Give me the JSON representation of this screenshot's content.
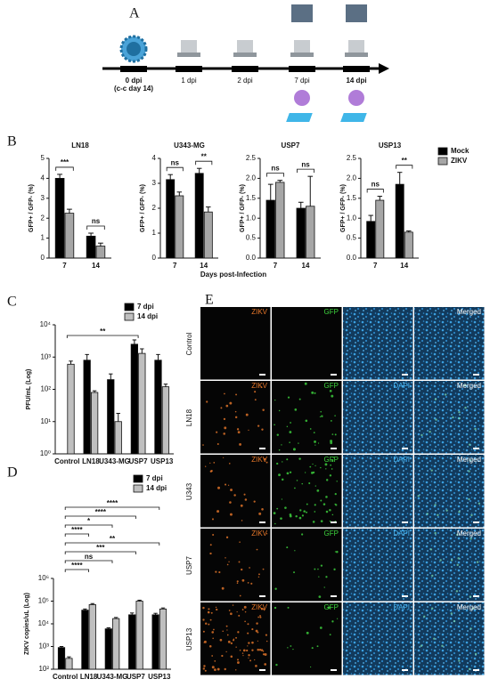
{
  "panels": [
    "A",
    "B",
    "C",
    "D",
    "E"
  ],
  "timeline": {
    "labels": [
      "0 dpi",
      "(c-c day 14)",
      "1 dpi",
      "2 dpi",
      "7 dpi",
      "14 dpi"
    ]
  },
  "chart_data": [
    {
      "type": "bar",
      "title": "LN18",
      "ylabel": "GFP+ / GFP- (%)",
      "xlabel": "Days post-Infection",
      "categories": [
        "7",
        "14"
      ],
      "series": [
        {
          "name": "Mock",
          "color": "#000000",
          "values": [
            4.0,
            1.1
          ],
          "errors": [
            0.2,
            0.15
          ]
        },
        {
          "name": "ZIKV",
          "color": "#a6a6a6",
          "values": [
            2.25,
            0.6
          ],
          "errors": [
            0.2,
            0.15
          ]
        }
      ],
      "ylim": [
        0,
        5
      ],
      "yticks": [
        0,
        1,
        2,
        3,
        4,
        5
      ],
      "annotations": [
        "***",
        "ns"
      ]
    },
    {
      "type": "bar",
      "title": "U343-MG",
      "ylabel": "GFP+ / GFP- (%)",
      "categories": [
        "7",
        "14"
      ],
      "series": [
        {
          "color": "#000000",
          "values": [
            3.15,
            3.4
          ],
          "errors": [
            0.2,
            0.2
          ]
        },
        {
          "color": "#a6a6a6",
          "values": [
            2.5,
            1.85
          ],
          "errors": [
            0.15,
            0.2
          ]
        }
      ],
      "ylim": [
        0,
        4
      ],
      "yticks": [
        0,
        1,
        2,
        3,
        4
      ],
      "annotations": [
        "ns",
        "**"
      ]
    },
    {
      "type": "bar",
      "title": "USP7",
      "ylabel": "GFP+ / GFP- (%)",
      "categories": [
        "7",
        "14"
      ],
      "series": [
        {
          "color": "#000000",
          "values": [
            1.45,
            1.25
          ],
          "errors": [
            0.4,
            0.15
          ]
        },
        {
          "color": "#a6a6a6",
          "values": [
            1.9,
            1.3
          ],
          "errors": [
            0.05,
            0.75
          ]
        }
      ],
      "ylim": [
        0,
        2.5
      ],
      "yticks": [
        {
          "value": 0,
          "label": "0.0"
        },
        0.5,
        {
          "value": 1,
          "label": "1.0"
        },
        1.5,
        {
          "value": 2,
          "label": "2.0"
        },
        2.5
      ],
      "annotations": [
        "ns",
        "ns"
      ]
    },
    {
      "type": "bar",
      "title": "USP13",
      "ylabel": "GFP+ / GFP- (%)",
      "categories": [
        "7",
        "14"
      ],
      "series": [
        {
          "color": "#000000",
          "values": [
            0.92,
            1.85
          ],
          "errors": [
            0.15,
            0.3
          ]
        },
        {
          "color": "#a6a6a6",
          "values": [
            1.45,
            0.65
          ],
          "errors": [
            0.1,
            0.03
          ]
        }
      ],
      "ylim": [
        0,
        2.5
      ],
      "yticks": [
        {
          "value": 0,
          "label": "0.0"
        },
        0.5,
        {
          "value": 1,
          "label": "1.0"
        },
        1.5,
        {
          "value": 2,
          "label": "2.0"
        },
        2.5
      ],
      "annotations": [
        "ns",
        "**"
      ]
    },
    {
      "type": "bar",
      "log": true,
      "ylabel": "PFU/mL (Log)",
      "categories": [
        "Control",
        "LN18",
        "U343-MG",
        "USP7",
        "USP13"
      ],
      "series": [
        {
          "name": "7 dpi",
          "color": "#000000",
          "values": [
            null,
            800,
            200,
            2500,
            800
          ],
          "errors": [
            null,
            400,
            100,
            900,
            400
          ]
        },
        {
          "name": "14 dpi",
          "color": "#bfbfbf",
          "values": [
            600,
            80,
            10,
            1300,
            120
          ],
          "errors": [
            150,
            10,
            8,
            500,
            25
          ]
        }
      ],
      "ylim": [
        1,
        10000
      ],
      "yticks": [
        {
          "value": 1,
          "label": "10⁰"
        },
        {
          "value": 10,
          "label": "10¹"
        },
        {
          "value": 100,
          "label": "10²"
        },
        {
          "value": 1000,
          "label": "10³"
        },
        {
          "value": 10000,
          "label": "10⁴"
        }
      ],
      "annotations": [
        "**"
      ]
    },
    {
      "type": "bar",
      "log": true,
      "ylabel": "ZIKV copies/uL (Log)",
      "categories": [
        "Control",
        "LN18",
        "U343-MG",
        "USP7",
        "USP13"
      ],
      "series": [
        {
          "name": "7 dpi",
          "color": "#000000",
          "values": [
            900,
            40000,
            6000,
            25000,
            25000
          ],
          "errors": [
            100,
            5000,
            700,
            5000,
            4000
          ]
        },
        {
          "name": "14 dpi",
          "color": "#bfbfbf",
          "values": [
            300,
            70000,
            17000,
            100000,
            45000
          ],
          "errors": [
            50,
            8000,
            2000,
            10000,
            5000
          ]
        }
      ],
      "ylim": [
        100,
        1000000
      ],
      "yticks": [
        {
          "value": 100,
          "label": "10²"
        },
        {
          "value": 1000,
          "label": "10³"
        },
        {
          "value": 10000,
          "label": "10⁴"
        },
        {
          "value": 100000,
          "label": "10⁵"
        },
        {
          "value": 1000000,
          "label": "10⁶"
        }
      ],
      "annotations": [
        "****",
        "****",
        "*",
        "****",
        "**",
        "***",
        "ns",
        "****"
      ]
    }
  ],
  "microscopy": {
    "rows": [
      {
        "label": "Control",
        "channels": [
          "ZIKV",
          "GFP",
          null,
          "Merged"
        ]
      },
      {
        "label": "LN18",
        "channels": [
          "ZIKV",
          "GFP",
          "DAPI",
          "Merged"
        ]
      },
      {
        "label": "U343",
        "channels": [
          "ZIKV",
          "GFP",
          "DAPI",
          "Merged"
        ]
      },
      {
        "label": "USP7",
        "channels": [
          "ZIKV",
          "GFP",
          "DAPI",
          "Merged"
        ]
      },
      {
        "label": "USP13",
        "channels": [
          "ZIKV",
          "GFP",
          "DAPI",
          "Merged"
        ]
      }
    ]
  }
}
